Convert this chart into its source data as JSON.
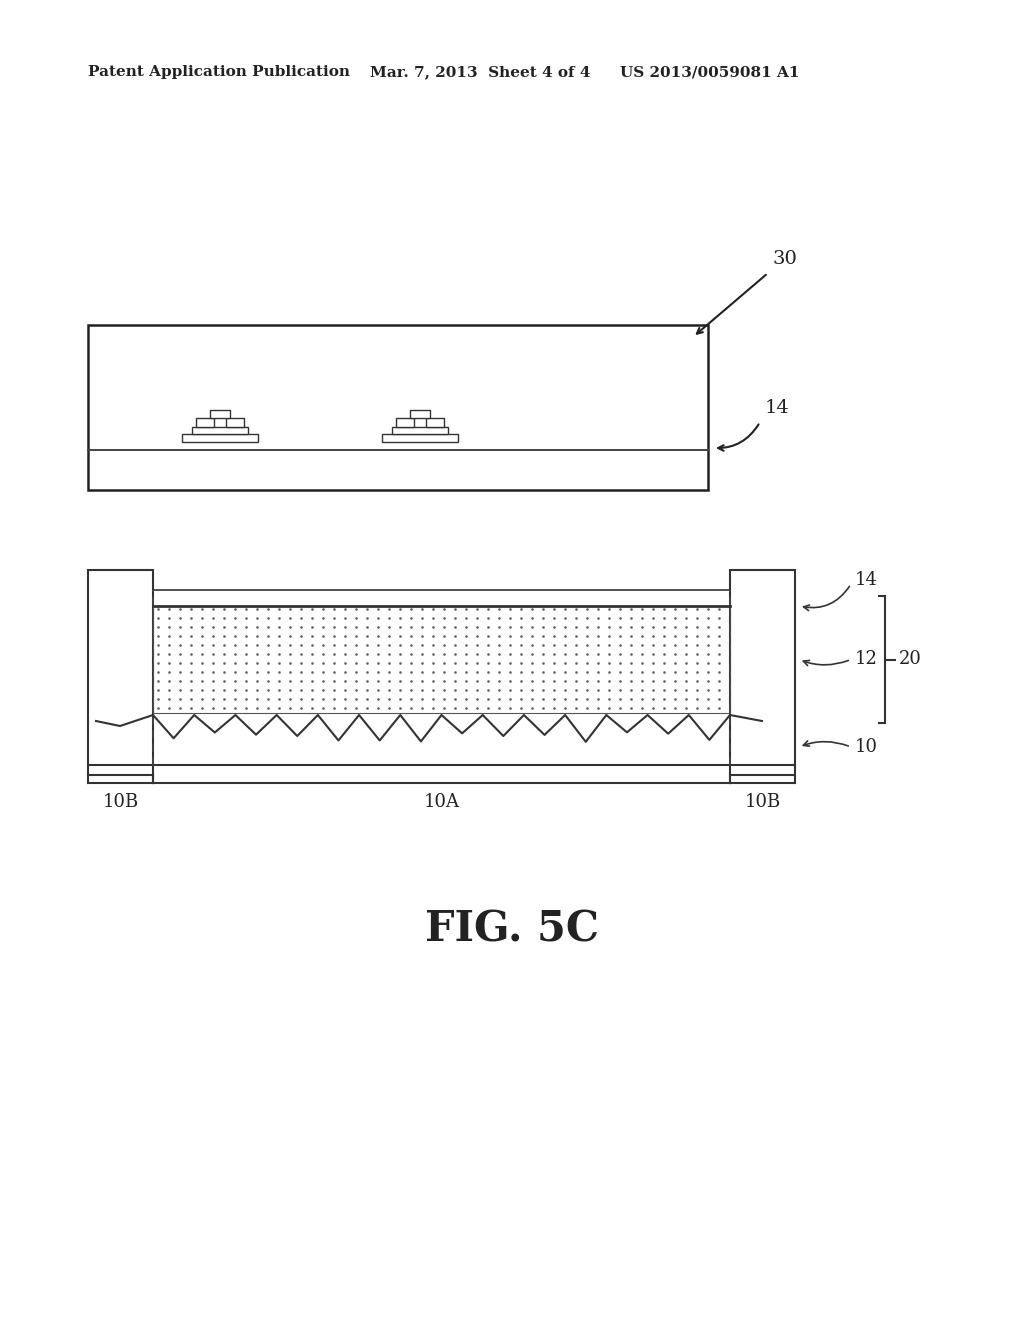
{
  "bg_color": "#ffffff",
  "header_left": "Patent Application Publication",
  "header_mid": "Mar. 7, 2013  Sheet 4 of 4",
  "header_right": "US 2013/0059081 A1",
  "fig_label": "FIG. 5C",
  "label_30": "30",
  "label_14": "14",
  "label_12": "12",
  "label_20": "20",
  "label_10": "10",
  "label_10A": "10A",
  "label_10B_left": "10B",
  "label_10B_right": "10B"
}
